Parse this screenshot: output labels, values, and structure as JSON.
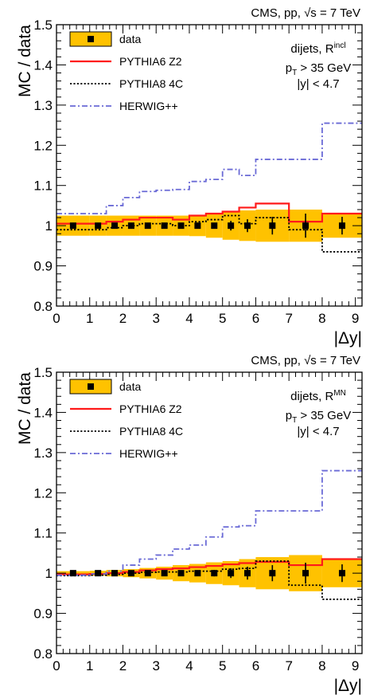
{
  "chart_data": [
    {
      "type": "line",
      "header": "CMS, pp, √s = 7 TeV",
      "title": "",
      "xlabel": "|Δy|",
      "ylabel": "MC / data",
      "xlim": [
        0,
        9.2
      ],
      "ylim": [
        0.8,
        1.5
      ],
      "x_ticks": [
        0,
        1,
        2,
        3,
        4,
        5,
        6,
        7,
        8,
        9
      ],
      "y_ticks": [
        0.8,
        0.9,
        1.0,
        1.1,
        1.2,
        1.3,
        1.4,
        1.5
      ],
      "legend_placement": "top-left",
      "info_lines": [
        "dijets, R",
        "incl",
        "p",
        "T",
        " > 35 GeV",
        "|y| < 4.7"
      ],
      "bin_edges": [
        0,
        1,
        1.5,
        2,
        2.5,
        3,
        3.5,
        4,
        4.5,
        5,
        5.5,
        6,
        7,
        8,
        9.2
      ],
      "data": {
        "name": "data",
        "x": [
          0.5,
          1.25,
          1.75,
          2.25,
          2.75,
          3.25,
          3.75,
          4.25,
          4.75,
          5.25,
          5.75,
          6.5,
          7.5,
          8.6
        ],
        "y": [
          1.0,
          1.0,
          1.0,
          1.0,
          1.0,
          1.0,
          1.0,
          1.0,
          1.0,
          1.0,
          1.0,
          1.0,
          1.0,
          1.0
        ],
        "stat_err": [
          0.004,
          0.004,
          0.004,
          0.004,
          0.004,
          0.004,
          0.005,
          0.006,
          0.007,
          0.012,
          0.016,
          0.022,
          0.03,
          0.022
        ],
        "syst_band": [
          0.025,
          0.025,
          0.025,
          0.025,
          0.025,
          0.025,
          0.025,
          0.026,
          0.03,
          0.035,
          0.038,
          0.04,
          0.04,
          0.03
        ],
        "color": "#ffc200",
        "edge_color": "#000000"
      },
      "series": [
        {
          "name": "PYTHIA6 Z2",
          "style": "solid",
          "color": "#ff1a1a",
          "values": [
            1.005,
            1.005,
            1.01,
            1.015,
            1.02,
            1.02,
            1.015,
            1.025,
            1.03,
            1.035,
            1.045,
            1.055,
            1.01,
            1.03
          ]
        },
        {
          "name": "PYTHIA8 4C",
          "style": "dotted",
          "color": "#000000",
          "values": [
            0.99,
            0.99,
            0.995,
            1.0,
            1.005,
            1.005,
            1.0,
            1.01,
            1.015,
            1.025,
            1.005,
            1.02,
            0.99,
            0.935
          ]
        },
        {
          "name": "HERWIG++",
          "style": "dashdot",
          "color": "#6a6ad6",
          "values": [
            1.03,
            1.03,
            1.05,
            1.07,
            1.085,
            1.088,
            1.09,
            1.11,
            1.115,
            1.14,
            1.125,
            1.165,
            1.165,
            1.255
          ]
        }
      ]
    },
    {
      "type": "line",
      "header": "CMS, pp, √s = 7 TeV",
      "title": "",
      "xlabel": "|Δy|",
      "ylabel": "MC / data",
      "xlim": [
        0,
        9.2
      ],
      "ylim": [
        0.8,
        1.5
      ],
      "x_ticks": [
        0,
        1,
        2,
        3,
        4,
        5,
        6,
        7,
        8,
        9
      ],
      "y_ticks": [
        0.8,
        0.9,
        1.0,
        1.1,
        1.2,
        1.3,
        1.4,
        1.5
      ],
      "legend_placement": "top-left",
      "info_lines": [
        "dijets, R",
        "MN",
        "p",
        "T",
        " > 35 GeV",
        "|y| < 4.7"
      ],
      "bin_edges": [
        0,
        1,
        1.5,
        2,
        2.5,
        3,
        3.5,
        4,
        4.5,
        5,
        5.5,
        6,
        7,
        8,
        9.2
      ],
      "data": {
        "name": "data",
        "x": [
          0.5,
          1.25,
          1.75,
          2.25,
          2.75,
          3.25,
          3.75,
          4.25,
          4.75,
          5.25,
          5.75,
          6.5,
          7.5,
          8.6
        ],
        "y": [
          1.0,
          1.0,
          1.0,
          1.0,
          1.0,
          1.0,
          1.0,
          1.0,
          1.0,
          1.0,
          1.0,
          1.0,
          1.0,
          1.0
        ],
        "stat_err": [
          0.003,
          0.003,
          0.003,
          0.003,
          0.004,
          0.004,
          0.005,
          0.006,
          0.008,
          0.012,
          0.016,
          0.02,
          0.026,
          0.022
        ],
        "syst_band": [
          0.005,
          0.006,
          0.008,
          0.01,
          0.013,
          0.016,
          0.02,
          0.023,
          0.027,
          0.03,
          0.035,
          0.04,
          0.045,
          0.035
        ],
        "color": "#ffc200",
        "edge_color": "#000000"
      },
      "series": [
        {
          "name": "PYTHIA6 Z2",
          "style": "solid",
          "color": "#ff1a1a",
          "values": [
            0.997,
            0.998,
            1.0,
            1.003,
            1.007,
            1.01,
            1.012,
            1.015,
            1.018,
            1.022,
            1.025,
            1.028,
            1.02,
            1.035
          ]
        },
        {
          "name": "PYTHIA8 4C",
          "style": "dotted",
          "color": "#000000",
          "values": [
            0.994,
            0.995,
            0.997,
            1.0,
            1.002,
            1.003,
            1.003,
            1.005,
            1.005,
            1.01,
            1.012,
            1.03,
            0.97,
            0.935
          ]
        },
        {
          "name": "HERWIG++",
          "style": "dashdot",
          "color": "#6a6ad6",
          "values": [
            0.995,
            0.998,
            1.005,
            1.02,
            1.035,
            1.045,
            1.06,
            1.07,
            1.09,
            1.115,
            1.118,
            1.155,
            1.155,
            1.255
          ]
        }
      ]
    }
  ]
}
